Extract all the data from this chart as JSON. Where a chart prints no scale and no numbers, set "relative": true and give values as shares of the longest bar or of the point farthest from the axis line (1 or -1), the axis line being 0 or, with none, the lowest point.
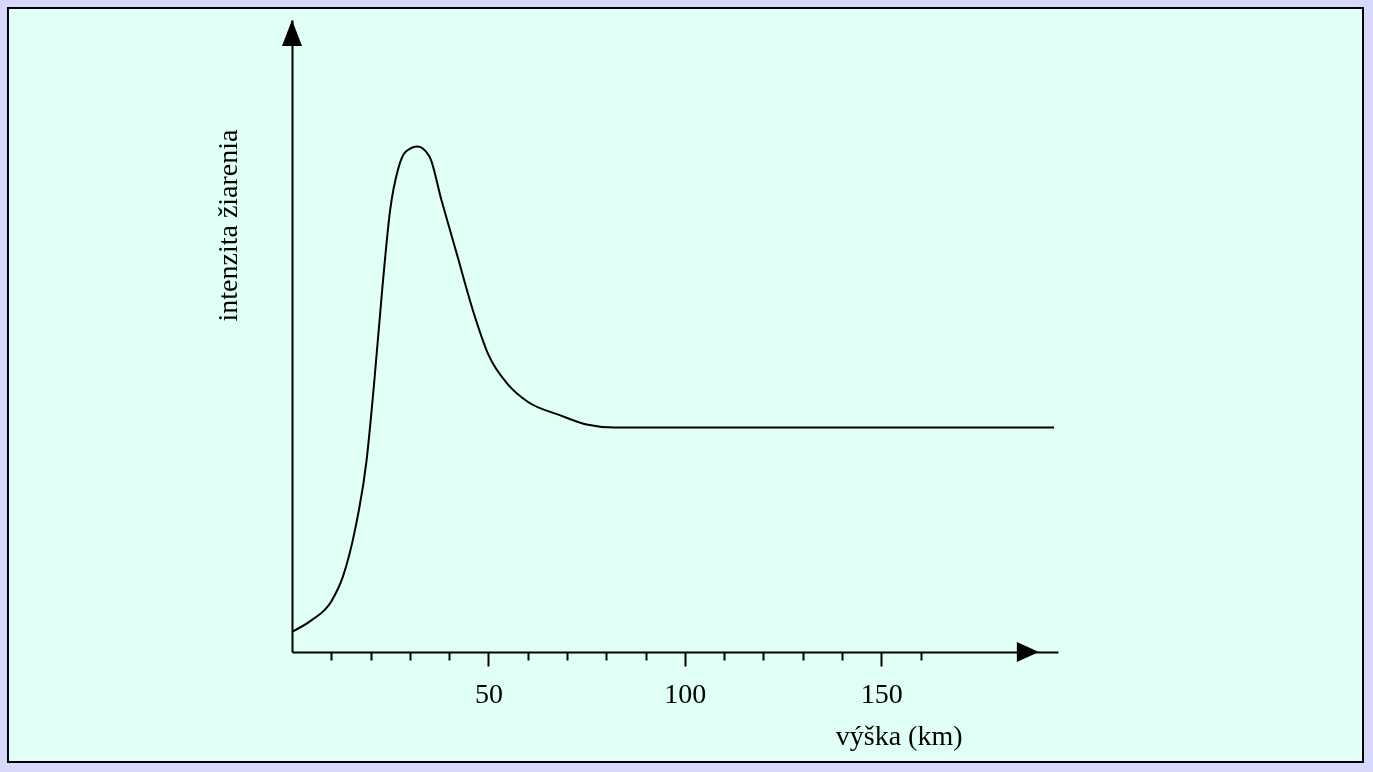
{
  "chart_data": {
    "type": "line",
    "xlabel": "výška (km)",
    "ylabel": "intenzita žiarenia",
    "relative": true,
    "x": [
      0,
      5,
      10,
      13,
      16,
      19,
      21,
      23,
      25,
      27,
      29,
      32,
      35,
      38,
      42,
      46,
      50,
      55,
      60,
      68,
      75,
      82,
      194
    ],
    "series": [
      {
        "color": "#000000",
        "values": [
          0.04,
          0.063,
          0.1,
          0.15,
          0.24,
          0.38,
          0.54,
          0.72,
          0.875,
          0.955,
          0.99,
          1.0,
          0.98,
          0.895,
          0.786,
          0.677,
          0.588,
          0.529,
          0.495,
          0.469,
          0.45,
          0.444,
          0.444
        ]
      }
    ],
    "xlim": [
      0,
      195
    ],
    "xticks": [
      {
        "value": 10,
        "label": null
      },
      {
        "value": 20,
        "label": null
      },
      {
        "value": 30,
        "label": null
      },
      {
        "value": 40,
        "label": null
      },
      50,
      {
        "value": 60,
        "label": null
      },
      {
        "value": 70,
        "label": null
      },
      {
        "value": 80,
        "label": null
      },
      {
        "value": 90,
        "label": null
      },
      100,
      {
        "value": 110,
        "label": null
      },
      {
        "value": 120,
        "label": null
      },
      {
        "value": 130,
        "label": null
      },
      {
        "value": 140,
        "label": null
      },
      150,
      {
        "value": 160,
        "label": null
      }
    ],
    "grid": false,
    "marker": "none",
    "line_style": "solid"
  }
}
